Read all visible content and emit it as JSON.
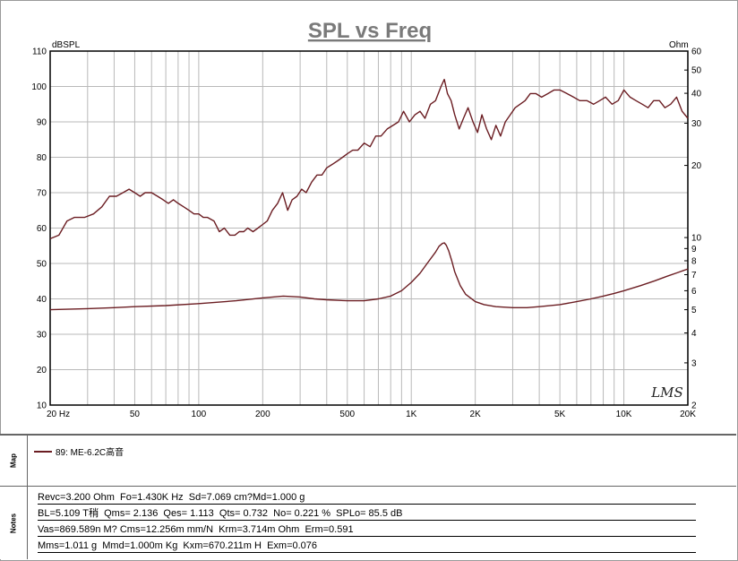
{
  "chart_data": {
    "type": "line",
    "title": "SPL vs Freq",
    "xscale": "log",
    "xlim": [
      20,
      20000
    ],
    "x_ticks": [
      {
        "value": 20,
        "label": "20  Hz"
      },
      {
        "value": 50,
        "label": "50"
      },
      {
        "value": 100,
        "label": "100"
      },
      {
        "value": 200,
        "label": "200"
      },
      {
        "value": 500,
        "label": "500"
      },
      {
        "value": 1000,
        "label": "1K"
      },
      {
        "value": 2000,
        "label": "2K"
      },
      {
        "value": 5000,
        "label": "5K"
      },
      {
        "value": 10000,
        "label": "10K"
      },
      {
        "value": 20000,
        "label": "20K"
      }
    ],
    "y_left": {
      "unit_label": "dBSPL",
      "range": [
        10,
        110
      ],
      "ticks": [
        10,
        20,
        30,
        40,
        50,
        60,
        70,
        80,
        90,
        100,
        110
      ]
    },
    "y_right": {
      "unit_label": "Ohm",
      "scale": "log",
      "range": [
        2,
        60
      ],
      "ticks": [
        2,
        3,
        4,
        5,
        6,
        7,
        8,
        9,
        10,
        20,
        30,
        40,
        50,
        60
      ]
    },
    "grid": true,
    "watermark": "LMS",
    "line_color": "#6b1d22",
    "series": [
      {
        "axis": "left",
        "x": [
          20,
          22,
          24,
          26,
          29,
          32,
          35,
          38,
          41,
          44,
          47,
          50,
          53,
          56,
          60,
          64,
          68,
          72,
          76,
          80,
          85,
          90,
          95,
          100,
          105,
          110,
          118,
          125,
          132,
          140,
          148,
          155,
          163,
          170,
          180,
          190,
          200,
          210,
          222,
          235,
          248,
          262,
          275,
          290,
          305,
          320,
          340,
          360,
          380,
          400,
          425,
          450,
          475,
          500,
          530,
          560,
          600,
          640,
          680,
          720,
          770,
          820,
          870,
          920,
          980,
          1040,
          1100,
          1160,
          1230,
          1300,
          1380,
          1430,
          1480,
          1540,
          1600,
          1680,
          1760,
          1850,
          1950,
          2050,
          2150,
          2260,
          2380,
          2500,
          2630,
          2770,
          2920,
          3080,
          3250,
          3430,
          3630,
          3850,
          4100,
          4400,
          4700,
          5000,
          5400,
          5800,
          6200,
          6700,
          7200,
          7700,
          8200,
          8800,
          9400,
          10000,
          10700,
          11400,
          12200,
          13000,
          13800,
          14700,
          15600,
          16600,
          17700,
          18800,
          20000
        ],
        "y": [
          57,
          58,
          62,
          63,
          63,
          64,
          66,
          69,
          69,
          70,
          71,
          70,
          69,
          70,
          70,
          69,
          68,
          67,
          68,
          67,
          66,
          65,
          64,
          64,
          63,
          63,
          62,
          59,
          60,
          58,
          58,
          59,
          59,
          60,
          59,
          60,
          61,
          62,
          65,
          67,
          70,
          65,
          68,
          69,
          71,
          70,
          73,
          75,
          75,
          77,
          78,
          79,
          80,
          81,
          82,
          82,
          84,
          83,
          86,
          86,
          88,
          89,
          90,
          93,
          90,
          92,
          93,
          91,
          95,
          96,
          100,
          102,
          98,
          96,
          92,
          88,
          91,
          94,
          90,
          87,
          92,
          88,
          85,
          89,
          86,
          90,
          92,
          94,
          95,
          96,
          98,
          98,
          97,
          98,
          99,
          99,
          98,
          97,
          96,
          96,
          95,
          96,
          97,
          95,
          96,
          99,
          97,
          96,
          95,
          94,
          96,
          96,
          94,
          95,
          97,
          93,
          91
        ],
        "right_y_fixed_note": ""
      },
      {
        "axis": "right",
        "x": [
          20,
          30,
          40,
          50,
          70,
          100,
          150,
          200,
          250,
          300,
          350,
          400,
          500,
          600,
          700,
          800,
          900,
          1000,
          1100,
          1200,
          1300,
          1350,
          1400,
          1430,
          1460,
          1500,
          1550,
          1600,
          1700,
          1800,
          2000,
          2200,
          2500,
          3000,
          3500,
          4000,
          5000,
          6000,
          7000,
          8000,
          9000,
          10000,
          12000,
          14000,
          16000,
          18000,
          20000
        ],
        "y": [
          5.0,
          5.05,
          5.1,
          5.15,
          5.2,
          5.3,
          5.45,
          5.6,
          5.7,
          5.65,
          5.55,
          5.5,
          5.45,
          5.45,
          5.55,
          5.7,
          6.0,
          6.5,
          7.1,
          7.9,
          8.7,
          9.2,
          9.45,
          9.5,
          9.3,
          8.8,
          8.0,
          7.2,
          6.3,
          5.8,
          5.4,
          5.25,
          5.15,
          5.1,
          5.1,
          5.15,
          5.25,
          5.4,
          5.55,
          5.7,
          5.85,
          6.0,
          6.3,
          6.6,
          6.9,
          7.15,
          7.4
        ]
      }
    ]
  },
  "map": {
    "label": "Map",
    "legend": "89: ME-6.2C高音"
  },
  "notes": {
    "label": "Notes",
    "lines": [
      "Revc=3.200 Ohm  Fo=1.430K Hz  Sd=7.069 cm?Md=1.000 g",
      "BL=5.109 T稍  Qms= 2.136  Qes= 1.113  Qts= 0.732  No= 0.221 %  SPLo= 85.5 dB",
      "Vas=869.589n M? Cms=12.256m mm/N  Krm=3.714m Ohm  Erm=0.591",
      "Mms=1.011 g  Mmd=1.000m Kg  Kxm=670.211m H  Exm=0.076"
    ]
  }
}
